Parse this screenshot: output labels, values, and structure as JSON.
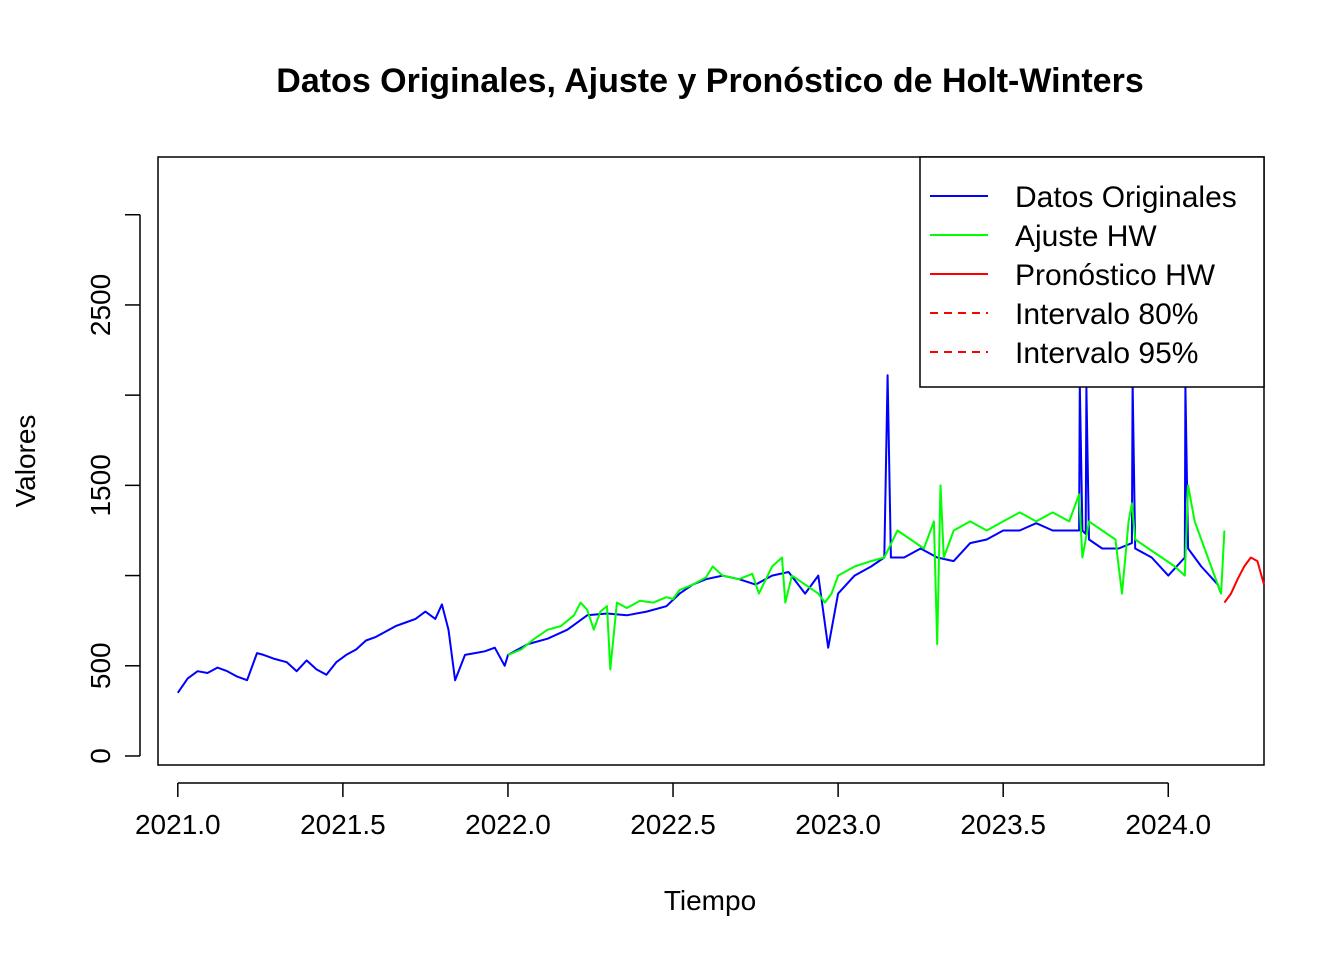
{
  "chart_data": {
    "type": "line",
    "title": "Datos Originales, Ajuste y Pronóstico de Holt-Winters",
    "xlabel": "Tiempo",
    "ylabel": "Valores",
    "xlim": [
      2020.94,
      2024.29
    ],
    "ylim": [
      -50,
      3320
    ],
    "x_ticks": [
      2021.0,
      2021.5,
      2022.0,
      2022.5,
      2023.0,
      2023.5,
      2024.0
    ],
    "x_tick_labels": [
      "2021.0",
      "2021.5",
      "2022.0",
      "2022.5",
      "2023.0",
      "2023.5",
      "2024.0"
    ],
    "y_ticks": [
      0,
      500,
      1000,
      1500,
      2000,
      2500,
      3000
    ],
    "y_tick_labels": [
      "0",
      "500",
      "",
      "1500",
      "",
      "2500",
      ""
    ],
    "grid": false,
    "legend_position": "top-right",
    "legend": [
      {
        "label": "Datos Originales",
        "color": "#0000ff",
        "dash": false
      },
      {
        "label": "Ajuste HW",
        "color": "#00ff00",
        "dash": false
      },
      {
        "label": "Pronóstico HW",
        "color": "#ff0000",
        "dash": false
      },
      {
        "label": "Intervalo 80%",
        "color": "#ff0000",
        "dash": true
      },
      {
        "label": "Intervalo 95%",
        "color": "#ff0000",
        "dash": true
      }
    ],
    "series": [
      {
        "name": "Datos Originales",
        "color": "#0000ff",
        "x": [
          2021.0,
          2021.03,
          2021.06,
          2021.09,
          2021.12,
          2021.15,
          2021.18,
          2021.21,
          2021.24,
          2021.26,
          2021.29,
          2021.33,
          2021.36,
          2021.39,
          2021.42,
          2021.45,
          2021.48,
          2021.51,
          2021.54,
          2021.57,
          2021.6,
          2021.63,
          2021.66,
          2021.69,
          2021.72,
          2021.75,
          2021.78,
          2021.8,
          2021.82,
          2021.84,
          2021.87,
          2021.9,
          2021.93,
          2021.96,
          2021.99,
          2022.0,
          2022.06,
          2022.12,
          2022.18,
          2022.24,
          2022.3,
          2022.36,
          2022.42,
          2022.48,
          2022.52,
          2022.56,
          2022.6,
          2022.65,
          2022.7,
          2022.75,
          2022.8,
          2022.85,
          2022.9,
          2022.94,
          2022.97,
          2023.0,
          2023.05,
          2023.1,
          2023.14,
          2023.15,
          2023.16,
          2023.2,
          2023.25,
          2023.3,
          2023.35,
          2023.4,
          2023.45,
          2023.5,
          2023.55,
          2023.6,
          2023.65,
          2023.7,
          2023.73,
          2023.732,
          2023.74,
          2023.75,
          2023.752,
          2023.76,
          2023.8,
          2023.85,
          2023.89,
          2023.892,
          2023.9,
          2023.95,
          2024.0,
          2024.05,
          2024.052,
          2024.06,
          2024.1,
          2024.15,
          2024.16
        ],
        "y": [
          350,
          430,
          470,
          460,
          490,
          470,
          440,
          420,
          570,
          560,
          540,
          520,
          470,
          530,
          480,
          450,
          520,
          560,
          590,
          640,
          660,
          690,
          720,
          740,
          760,
          800,
          760,
          840,
          700,
          420,
          560,
          570,
          580,
          600,
          500,
          560,
          620,
          650,
          700,
          780,
          790,
          780,
          800,
          830,
          900,
          950,
          980,
          1000,
          980,
          950,
          1000,
          1020,
          900,
          1000,
          600,
          900,
          1000,
          1050,
          1100,
          2110,
          1100,
          1100,
          1150,
          1100,
          1080,
          1180,
          1200,
          1250,
          1250,
          1290,
          1250,
          1250,
          1250,
          2060,
          1250,
          1230,
          2040,
          1200,
          1150,
          1150,
          1180,
          2070,
          1150,
          1100,
          1000,
          1100,
          2050,
          1150,
          1050,
          950,
          900
        ]
      },
      {
        "name": "Ajuste HW",
        "color": "#00ff00",
        "x": [
          2022.0,
          2022.04,
          2022.08,
          2022.12,
          2022.16,
          2022.2,
          2022.22,
          2022.24,
          2022.26,
          2022.28,
          2022.3,
          2022.31,
          2022.33,
          2022.36,
          2022.4,
          2022.44,
          2022.48,
          2022.5,
          2022.52,
          2022.56,
          2022.6,
          2022.62,
          2022.65,
          2022.7,
          2022.74,
          2022.76,
          2022.8,
          2022.83,
          2022.84,
          2022.86,
          2022.9,
          2022.94,
          2022.96,
          2022.98,
          2023.0,
          2023.05,
          2023.1,
          2023.14,
          2023.18,
          2023.22,
          2023.26,
          2023.29,
          2023.3,
          2023.31,
          2023.32,
          2023.35,
          2023.4,
          2023.45,
          2023.5,
          2023.55,
          2023.6,
          2023.65,
          2023.7,
          2023.73,
          2023.74,
          2023.76,
          2023.8,
          2023.84,
          2023.86,
          2023.88,
          2023.89,
          2023.9,
          2023.94,
          2023.98,
          2024.02,
          2024.05,
          2024.06,
          2024.08,
          2024.1,
          2024.14,
          2024.16,
          2024.17
        ],
        "y": [
          560,
          590,
          650,
          700,
          720,
          780,
          850,
          810,
          700,
          800,
          830,
          480,
          850,
          820,
          860,
          850,
          880,
          870,
          920,
          950,
          990,
          1050,
          1000,
          980,
          1010,
          900,
          1050,
          1100,
          850,
          1000,
          950,
          900,
          850,
          900,
          1000,
          1050,
          1080,
          1100,
          1250,
          1200,
          1150,
          1300,
          620,
          1500,
          1100,
          1250,
          1300,
          1250,
          1300,
          1350,
          1300,
          1350,
          1300,
          1450,
          1100,
          1300,
          1250,
          1200,
          900,
          1300,
          1400,
          1200,
          1150,
          1100,
          1050,
          1000,
          1500,
          1300,
          1200,
          1000,
          900,
          1250
        ]
      },
      {
        "name": "Pronóstico HW",
        "color": "#ff0000",
        "x": [
          2024.17,
          2024.19,
          2024.21,
          2024.23,
          2024.25,
          2024.27,
          2024.29
        ],
        "y": [
          850,
          900,
          980,
          1050,
          1100,
          1080,
          950
        ]
      }
    ]
  }
}
